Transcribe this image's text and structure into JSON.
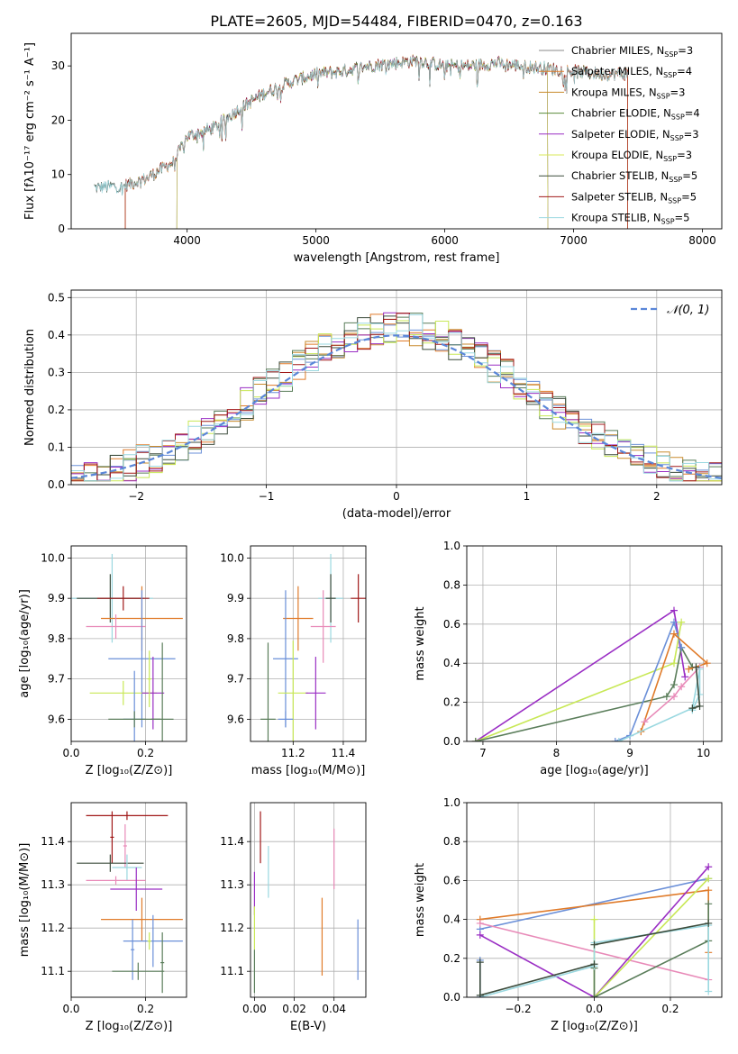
{
  "title": "PLATE=2605, MJD=54484, FIBERID=0470, z=0.163",
  "colors": [
    "#6a8fd8",
    "#e07b2a",
    "#c98b2d",
    "#5a7d5a",
    "#9a2ec4",
    "#c8e856",
    "#3c4c3c",
    "#a01818",
    "#9ad8e0",
    "#e88ab8"
  ],
  "chart_data": [
    {
      "id": "spectrum",
      "type": "line",
      "xlabel": "wavelength [Angstrom, rest frame]",
      "ylabel": "Flux [fλ10⁻¹⁷ erg cm⁻² s⁻¹ A⁻¹]",
      "xlim": [
        3100,
        8150
      ],
      "ylim": [
        0,
        36
      ],
      "xticks": [
        4000,
        5000,
        6000,
        7000,
        8000
      ],
      "yticks": [
        0,
        10,
        20,
        30
      ],
      "grid": false,
      "legend_position": "top-right",
      "x_range": [
        3280,
        7420
      ],
      "continuum_knots": [
        [
          3280,
          7.6
        ],
        [
          3500,
          7.8
        ],
        [
          3700,
          9.5
        ],
        [
          3900,
          12.5
        ],
        [
          4000,
          17
        ],
        [
          4200,
          18.5
        ],
        [
          4400,
          22
        ],
        [
          4600,
          25
        ],
        [
          4800,
          27
        ],
        [
          5000,
          28.5
        ],
        [
          5200,
          29
        ],
        [
          5400,
          30
        ],
        [
          5600,
          30.5
        ],
        [
          5800,
          31
        ],
        [
          6000,
          30
        ],
        [
          6200,
          30
        ],
        [
          6400,
          30.5
        ],
        [
          6600,
          30
        ],
        [
          6800,
          29.5
        ],
        [
          7000,
          29
        ],
        [
          7200,
          28.5
        ],
        [
          7420,
          28.5
        ]
      ],
      "series": [
        {
          "name": "Chabrier MILES, N",
          "sub": "SSP",
          "n": "=3",
          "color": "#8a8a8a",
          "start": 3280,
          "end": 7420
        },
        {
          "name": "Salpeter MILES, N",
          "sub": "SSP",
          "n": "=4",
          "color": "#e07b2a",
          "start": 3520,
          "end": 7420
        },
        {
          "name": "Kroupa MILES, N",
          "sub": "SSP",
          "n": "=3",
          "color": "#c98b2d",
          "start": 3520,
          "end": 7420
        },
        {
          "name": "Chabrier ELODIE, N",
          "sub": "SSP",
          "n": "=4",
          "color": "#5a8c3a",
          "start": 3920,
          "end": 6800
        },
        {
          "name": "Salpeter ELODIE, N",
          "sub": "SSP",
          "n": "=3",
          "color": "#9a2ec4",
          "start": 3920,
          "end": 6800
        },
        {
          "name": "Kroupa ELODIE, N",
          "sub": "SSP",
          "n": "=3",
          "color": "#d8e85a",
          "start": 3920,
          "end": 6800
        },
        {
          "name": "Chabrier STELIB, N",
          "sub": "SSP",
          "n": "=5",
          "color": "#3c4c3c",
          "start": 3280,
          "end": 7420
        },
        {
          "name": "Salpeter STELIB, N",
          "sub": "SSP",
          "n": "=5",
          "color": "#a01818",
          "start": 3520,
          "end": 7420
        },
        {
          "name": "Kroupa STELIB, N",
          "sub": "SSP",
          "n": "=5",
          "color": "#9ad8e0",
          "start": 3280,
          "end": 7420
        }
      ]
    },
    {
      "id": "residuals",
      "type": "histogram",
      "xlabel": "(data-model)/error",
      "ylabel": "Normed distribution",
      "xlim": [
        -2.5,
        2.5
      ],
      "ylim": [
        0,
        0.52
      ],
      "xticks": [
        -2,
        -1,
        0,
        1,
        2
      ],
      "xtick_labels": [
        "−2",
        "−1",
        "0",
        "1",
        "2"
      ],
      "yticks": [
        0.0,
        0.1,
        0.2,
        0.3,
        0.4,
        0.5
      ],
      "grid": true,
      "legend_position": "top-right",
      "legend_label": "𝒩(0, 1)",
      "normal_curve": {
        "mu": 0,
        "sigma": 1,
        "color": "#5a86d8"
      },
      "bin_width": 0.1,
      "bin_start": -2.5,
      "series_colors": [
        "#6a8fd8",
        "#e07b2a",
        "#c98b2d",
        "#5a7d5a",
        "#9a2ec4",
        "#c8e856",
        "#3c4c3c",
        "#a01818",
        "#9ad8e0"
      ]
    },
    {
      "id": "age-vs-Z",
      "type": "errorbar",
      "xlabel": "Z [log₁₀(Z/Z⊙)]",
      "ylabel": "age  [log₁₀(age/yr)]",
      "xlim": [
        0.0,
        0.31
      ],
      "ylim": [
        9.545,
        10.03
      ],
      "xticks": [
        0.0,
        0.2
      ],
      "xtick_labels": [
        "0.0",
        "0.2"
      ],
      "yticks": [
        9.6,
        9.7,
        9.8,
        9.9,
        10.0
      ],
      "grid": true,
      "points": [
        {
          "x": 0.11,
          "xerr": 0.11,
          "y": 9.9,
          "yerr": 0.11,
          "color": "#9ad8e0"
        },
        {
          "x": 0.105,
          "xerr": 0.09,
          "y": 9.9,
          "yerr": 0.06,
          "color": "#3c4c3c"
        },
        {
          "x": 0.14,
          "xerr": 0.07,
          "y": 9.9,
          "yerr": 0.03,
          "color": "#a01818"
        },
        {
          "x": 0.19,
          "xerr": 0.11,
          "y": 9.85,
          "yerr": 0.08,
          "color": "#e07b2a"
        },
        {
          "x": 0.12,
          "xerr": 0.08,
          "y": 9.83,
          "yerr": 0.03,
          "color": "#e88ab8"
        },
        {
          "x": 0.19,
          "xerr": 0.09,
          "y": 9.75,
          "yerr": 0.17,
          "color": "#6a8fd8"
        },
        {
          "x": 0.14,
          "xerr": 0.09,
          "y": 9.665,
          "yerr": 0.03,
          "color": "#c8e856"
        },
        {
          "x": 0.22,
          "xerr": 0.03,
          "y": 9.665,
          "yerr": 0.09,
          "color": "#9a2ec4"
        },
        {
          "x": 0.17,
          "xerr": 0.03,
          "y": 9.6,
          "yerr": 0.12,
          "color": "#6a8fd8"
        },
        {
          "x": 0.17,
          "xerr": 0.07,
          "y": 9.6,
          "yerr": 0.02,
          "color": "#5a7d5a"
        },
        {
          "x": 0.245,
          "xerr": 0.03,
          "y": 9.6,
          "yerr": 0.19,
          "color": "#5a7d5a"
        },
        {
          "x": 0.21,
          "xerr": 0.005,
          "y": 9.7,
          "yerr": 0.07,
          "color": "#c8e856"
        }
      ]
    },
    {
      "id": "age-vs-mass",
      "type": "errorbar",
      "xlabel": "mass [log₁₀(M/M⊙)]",
      "ylabel": "",
      "xlim": [
        11.03,
        11.49
      ],
      "ylim": [
        9.545,
        10.03
      ],
      "xticks": [
        11.2,
        11.4
      ],
      "xtick_labels": [
        "11.2",
        "11.4"
      ],
      "yticks": [
        9.6,
        9.7,
        9.8,
        9.9,
        10.0
      ],
      "grid": true,
      "points": [
        {
          "x": 11.35,
          "xerr": 0.05,
          "y": 9.9,
          "yerr": 0.11,
          "color": "#9ad8e0"
        },
        {
          "x": 11.35,
          "xerr": 0.02,
          "y": 9.9,
          "yerr": 0.06,
          "color": "#3c4c3c"
        },
        {
          "x": 11.46,
          "xerr": 0.03,
          "y": 9.9,
          "yerr": 0.06,
          "color": "#a01818"
        },
        {
          "x": 11.22,
          "xerr": 0.06,
          "y": 9.85,
          "yerr": 0.08,
          "color": "#e07b2a"
        },
        {
          "x": 11.32,
          "xerr": 0.05,
          "y": 9.83,
          "yerr": 0.09,
          "color": "#e88ab8"
        },
        {
          "x": 11.17,
          "xerr": 0.05,
          "y": 9.75,
          "yerr": 0.17,
          "color": "#6a8fd8"
        },
        {
          "x": 11.2,
          "xerr": 0.06,
          "y": 9.665,
          "yerr": 0.13,
          "color": "#c8e856"
        },
        {
          "x": 11.29,
          "xerr": 0.04,
          "y": 9.665,
          "yerr": 0.09,
          "color": "#9a2ec4"
        },
        {
          "x": 11.1,
          "xerr": 0.03,
          "y": 9.6,
          "yerr": 0.19,
          "color": "#5a7d5a"
        },
        {
          "x": 11.17,
          "xerr": 0.03,
          "y": 9.6,
          "yerr": 0.02,
          "color": "#6a8fd8"
        }
      ]
    },
    {
      "id": "weight-vs-age",
      "type": "line",
      "xlabel": "age  [log₁₀(age/yr)]",
      "ylabel": "mass weight",
      "xlim": [
        6.78,
        10.25
      ],
      "ylim": [
        0,
        1.0
      ],
      "xticks": [
        7,
        8,
        9,
        10
      ],
      "yticks": [
        0.0,
        0.2,
        0.4,
        0.6,
        0.8,
        1.0
      ],
      "grid": true,
      "series": [
        {
          "color": "#9a2ec4",
          "points": [
            [
              6.9,
              0.0
            ],
            [
              9.6,
              0.67
            ],
            [
              9.75,
              0.33
            ]
          ]
        },
        {
          "color": "#c8e856",
          "points": [
            [
              6.9,
              0.0
            ],
            [
              9.6,
              0.4
            ],
            [
              9.7,
              0.61
            ]
          ]
        },
        {
          "color": "#5a7d5a",
          "points": [
            [
              6.9,
              0.0
            ],
            [
              9.5,
              0.23
            ],
            [
              9.6,
              0.29
            ],
            [
              9.7,
              0.48
            ],
            [
              9.85,
              0.38
            ]
          ]
        },
        {
          "color": "#6a8fd8",
          "points": [
            [
              8.8,
              0.0
            ],
            [
              9.0,
              0.03
            ],
            [
              9.6,
              0.61
            ],
            [
              9.7,
              0.48
            ]
          ]
        },
        {
          "color": "#e07b2a",
          "points": [
            [
              9.15,
              0.05
            ],
            [
              9.6,
              0.55
            ],
            [
              10.05,
              0.4
            ],
            [
              9.8,
              0.37
            ]
          ]
        },
        {
          "color": "#e88ab8",
          "points": [
            [
              9.2,
              0.1
            ],
            [
              9.6,
              0.23
            ],
            [
              9.7,
              0.28
            ],
            [
              9.95,
              0.38
            ]
          ]
        },
        {
          "color": "#9ad8e0",
          "points": [
            [
              8.85,
              0.0
            ],
            [
              9.85,
              0.17
            ],
            [
              9.95,
              0.37
            ],
            [
              9.95,
              0.24
            ],
            [
              9.85,
              0.16
            ]
          ]
        },
        {
          "color": "#3c4c3c",
          "points": [
            [
              9.85,
              0.17
            ],
            [
              9.95,
              0.18
            ],
            [
              9.9,
              0.38
            ]
          ]
        }
      ]
    },
    {
      "id": "mass-vs-Z",
      "type": "errorbar",
      "xlabel": "Z [log₁₀(Z/Z⊙)]",
      "ylabel": "mass [log₁₀(M/M⊙)]",
      "xlim": [
        0.0,
        0.31
      ],
      "ylim": [
        11.04,
        11.49
      ],
      "xticks": [
        0.0,
        0.2
      ],
      "xtick_labels": [
        "0.0",
        "0.2"
      ],
      "yticks": [
        11.1,
        11.2,
        11.3,
        11.4
      ],
      "grid": true,
      "points": [
        {
          "x": 0.15,
          "xerr": 0.11,
          "y": 11.46,
          "yerr": 0.01,
          "color": "#a01818"
        },
        {
          "x": 0.11,
          "xerr": 0.005,
          "y": 11.41,
          "yerr": 0.06,
          "color": "#a01818"
        },
        {
          "x": 0.145,
          "xerr": 0.005,
          "y": 11.39,
          "yerr": 0.05,
          "color": "#e88ab8"
        },
        {
          "x": 0.105,
          "xerr": 0.09,
          "y": 11.35,
          "yerr": 0.02,
          "color": "#3c4c3c"
        },
        {
          "x": 0.15,
          "xerr": 0.04,
          "y": 11.34,
          "yerr": 0.03,
          "color": "#9ad8e0"
        },
        {
          "x": 0.12,
          "xerr": 0.08,
          "y": 11.31,
          "yerr": 0.01,
          "color": "#e88ab8"
        },
        {
          "x": 0.175,
          "xerr": 0.07,
          "y": 11.29,
          "yerr": 0.05,
          "color": "#9a2ec4"
        },
        {
          "x": 0.19,
          "xerr": 0.11,
          "y": 11.22,
          "yerr": 0.05,
          "color": "#e07b2a"
        },
        {
          "x": 0.22,
          "xerr": 0.08,
          "y": 11.17,
          "yerr": 0.06,
          "color": "#6a8fd8"
        },
        {
          "x": 0.21,
          "xerr": 0.005,
          "y": 11.17,
          "yerr": 0.02,
          "color": "#c8e856"
        },
        {
          "x": 0.165,
          "xerr": 0.005,
          "y": 11.15,
          "yerr": 0.07,
          "color": "#6a8fd8"
        },
        {
          "x": 0.18,
          "xerr": 0.07,
          "y": 11.1,
          "yerr": 0.02,
          "color": "#5a7d5a"
        },
        {
          "x": 0.245,
          "xerr": 0.005,
          "y": 11.12,
          "yerr": 0.07,
          "color": "#5a7d5a"
        }
      ]
    },
    {
      "id": "mass-vs-EBV",
      "type": "errorbar",
      "xlabel": "E(B-V)",
      "ylabel": "",
      "xlim": [
        -0.002,
        0.056
      ],
      "ylim": [
        11.04,
        11.49
      ],
      "xticks": [
        0.0,
        0.02,
        0.04
      ],
      "xtick_labels": [
        "0.00",
        "0.02",
        "0.04"
      ],
      "yticks": [
        11.1,
        11.2,
        11.3,
        11.4
      ],
      "grid": true,
      "points": [
        {
          "x": 0.003,
          "xerr": 0,
          "y": 11.41,
          "yerr": 0.06,
          "color": "#a01818"
        },
        {
          "x": 0.0,
          "xerr": 0,
          "y": 11.28,
          "yerr": 0.05,
          "color": "#9a2ec4"
        },
        {
          "x": 0.007,
          "xerr": 0,
          "y": 11.33,
          "yerr": 0.06,
          "color": "#9ad8e0"
        },
        {
          "x": 0.0,
          "xerr": 0,
          "y": 11.2,
          "yerr": 0.05,
          "color": "#c8e856"
        },
        {
          "x": 0.0,
          "xerr": 0,
          "y": 11.1,
          "yerr": 0.05,
          "color": "#5a7d5a"
        },
        {
          "x": 0.034,
          "xerr": 0,
          "y": 11.18,
          "yerr": 0.09,
          "color": "#e07b2a"
        },
        {
          "x": 0.04,
          "xerr": 0,
          "y": 11.36,
          "yerr": 0.07,
          "color": "#e88ab8"
        },
        {
          "x": 0.052,
          "xerr": 0,
          "y": 11.15,
          "yerr": 0.07,
          "color": "#6a8fd8"
        }
      ]
    },
    {
      "id": "weight-vs-Z",
      "type": "line",
      "xlabel": "Z [log₁₀(Z/Z⊙)]",
      "ylabel": "mass weight",
      "xlim": [
        -0.335,
        0.335
      ],
      "ylim": [
        0,
        1.0
      ],
      "xticks": [
        -0.2,
        0.0,
        0.2
      ],
      "xtick_labels": [
        "−0.2",
        "0.0",
        "0.2"
      ],
      "yticks": [
        0.0,
        0.2,
        0.4,
        0.6,
        0.8,
        1.0
      ],
      "grid": true,
      "series": [
        {
          "color": "#6a8fd8",
          "points": [
            [
              -0.3,
              0.35
            ],
            [
              0.3,
              0.61
            ]
          ]
        },
        {
          "color": "#e07b2a",
          "points": [
            [
              -0.3,
              0.4
            ],
            [
              0.3,
              0.55
            ],
            [
              0.3,
              0.23
            ]
          ]
        },
        {
          "color": "#e88ab8",
          "points": [
            [
              -0.3,
              0.38
            ],
            [
              0.3,
              0.09
            ]
          ]
        },
        {
          "color": "#9a2ec4",
          "points": [
            [
              -0.3,
              0.32
            ],
            [
              0.0,
              0.0
            ],
            [
              0.3,
              0.67
            ]
          ]
        },
        {
          "color": "#c8e856",
          "points": [
            [
              0.0,
              0.4
            ],
            [
              0.0,
              0.0
            ],
            [
              0.3,
              0.61
            ]
          ]
        },
        {
          "color": "#5a7d5a",
          "points": [
            [
              0.0,
              0.15
            ],
            [
              0.0,
              0.0
            ],
            [
              0.3,
              0.29
            ],
            [
              0.3,
              0.48
            ]
          ]
        },
        {
          "color": "#9ad8e0",
          "points": [
            [
              -0.3,
              0.0
            ],
            [
              0.0,
              0.16
            ],
            [
              0.0,
              0.28
            ],
            [
              0.3,
              0.37
            ],
            [
              0.3,
              0.03
            ]
          ]
        },
        {
          "color": "#6a8fd8",
          "points": [
            [
              -0.3,
              0.19
            ],
            [
              -0.3,
              0.0
            ]
          ]
        },
        {
          "color": "#3c4c3c",
          "points": [
            [
              -0.3,
              0.18
            ],
            [
              -0.3,
              0.01
            ],
            [
              0.0,
              0.17
            ]
          ]
        },
        {
          "color": "#3c4c3c",
          "points": [
            [
              0.0,
              0.27
            ],
            [
              0.3,
              0.38
            ]
          ]
        }
      ]
    }
  ]
}
